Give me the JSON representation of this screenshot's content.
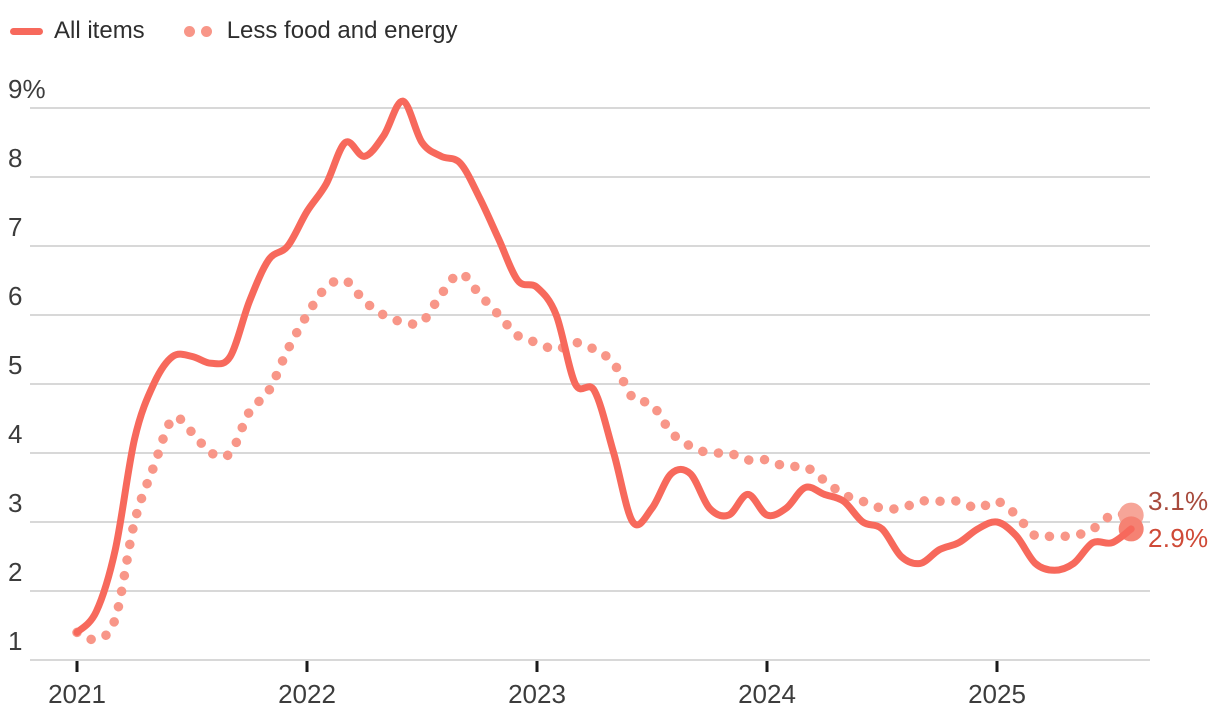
{
  "legend": {
    "items": [
      {
        "label": "All items",
        "style": "solid"
      },
      {
        "label": "Less food and energy",
        "style": "dotted"
      }
    ]
  },
  "end_labels": {
    "core": "3.1%",
    "all_items": "2.9%"
  },
  "colors": {
    "solid_line": "#f7695c",
    "dotted_line": "#f89688",
    "marker_solid": "#f58273",
    "marker_dotted": "#f6a598",
    "end_label_core": "#a84b3d",
    "end_label_all": "#cf4a37",
    "grid": "#d8d8d8",
    "axis_tick": "#1a1a1a",
    "axis_text": "#3c3c3c",
    "legend_text": "#2e2e2e"
  },
  "chart_data": {
    "type": "line",
    "title": "",
    "xlabel": "",
    "ylabel": "",
    "ylim": [
      1,
      9
    ],
    "grid": true,
    "legend_position": "top-left",
    "y_tick_labels": [
      "9%",
      "8",
      "7",
      "6",
      "5",
      "4",
      "3",
      "2",
      "1"
    ],
    "y_tick_values": [
      9,
      8,
      7,
      6,
      5,
      4,
      3,
      2,
      1
    ],
    "x_tick_labels": [
      "2021",
      "2022",
      "2023",
      "2024",
      "2025"
    ],
    "x": [
      "2021-01",
      "2021-02",
      "2021-03",
      "2021-04",
      "2021-05",
      "2021-06",
      "2021-07",
      "2021-08",
      "2021-09",
      "2021-10",
      "2021-11",
      "2021-12",
      "2022-01",
      "2022-02",
      "2022-03",
      "2022-04",
      "2022-05",
      "2022-06",
      "2022-07",
      "2022-08",
      "2022-09",
      "2022-10",
      "2022-11",
      "2022-12",
      "2023-01",
      "2023-02",
      "2023-03",
      "2023-04",
      "2023-05",
      "2023-06",
      "2023-07",
      "2023-08",
      "2023-09",
      "2023-10",
      "2023-11",
      "2023-12",
      "2024-01",
      "2024-02",
      "2024-03",
      "2024-04",
      "2024-05",
      "2024-06",
      "2024-07",
      "2024-08",
      "2024-09",
      "2024-10",
      "2024-11",
      "2024-12",
      "2025-01",
      "2025-02",
      "2025-03",
      "2025-04",
      "2025-05",
      "2025-06",
      "2025-07",
      "2025-08"
    ],
    "series": [
      {
        "name": "All items",
        "style": "solid",
        "end_label": "2.9%",
        "values": [
          1.4,
          1.7,
          2.6,
          4.2,
          5.0,
          5.4,
          5.4,
          5.3,
          5.4,
          6.2,
          6.8,
          7.0,
          7.5,
          7.9,
          8.5,
          8.3,
          8.6,
          9.1,
          8.5,
          8.3,
          8.2,
          7.7,
          7.1,
          6.5,
          6.4,
          6.0,
          5.0,
          4.9,
          4.0,
          3.0,
          3.2,
          3.7,
          3.7,
          3.2,
          3.1,
          3.4,
          3.1,
          3.2,
          3.5,
          3.4,
          3.3,
          3.0,
          2.9,
          2.5,
          2.4,
          2.6,
          2.7,
          2.9,
          3.0,
          2.8,
          2.4,
          2.3,
          2.4,
          2.7,
          2.7,
          2.9
        ]
      },
      {
        "name": "Less food and energy",
        "style": "dotted",
        "end_label": "3.1%",
        "values": [
          1.4,
          1.3,
          1.6,
          3.0,
          3.8,
          4.5,
          4.3,
          4.0,
          4.0,
          4.6,
          4.9,
          5.5,
          6.0,
          6.4,
          6.5,
          6.2,
          6.0,
          5.9,
          5.9,
          6.3,
          6.6,
          6.3,
          6.0,
          5.7,
          5.6,
          5.5,
          5.6,
          5.5,
          5.3,
          4.8,
          4.7,
          4.3,
          4.1,
          4.0,
          4.0,
          3.9,
          3.9,
          3.8,
          3.8,
          3.6,
          3.4,
          3.3,
          3.2,
          3.2,
          3.3,
          3.3,
          3.3,
          3.2,
          3.3,
          3.1,
          2.8,
          2.8,
          2.8,
          2.9,
          3.1,
          3.1
        ]
      }
    ]
  }
}
